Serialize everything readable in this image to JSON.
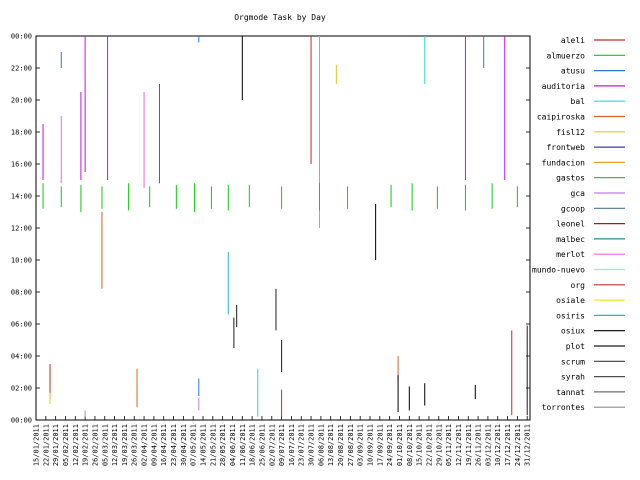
{
  "chart_data": {
    "type": "bar",
    "title": "Orgmode Task by Day",
    "xlabel": "",
    "ylabel": "",
    "ylim": [
      0,
      24
    ],
    "x_range": [
      "2011-01-15",
      "2012-01-02"
    ],
    "y_tick_labels": [
      "00:00",
      "02:00",
      "04:00",
      "06:00",
      "08:00",
      "10:00",
      "12:00",
      "14:00",
      "16:00",
      "18:00",
      "20:00",
      "22:00",
      "00:00"
    ],
    "x_tick_labels": [
      "15/01/2011",
      "22/01/2011",
      "29/01/2011",
      "05/02/2011",
      "12/02/2011",
      "19/02/2011",
      "26/02/2011",
      "05/03/2011",
      "12/03/2011",
      "19/03/2011",
      "26/03/2011",
      "02/04/2011",
      "09/04/2011",
      "16/04/2011",
      "23/04/2011",
      "30/04/2011",
      "07/05/2011",
      "14/05/2011",
      "21/05/2011",
      "28/05/2011",
      "04/06/2011",
      "11/06/2011",
      "18/06/2011",
      "25/06/2011",
      "02/07/2011",
      "09/07/2011",
      "16/07/2011",
      "23/07/2011",
      "30/07/2011",
      "06/08/2011",
      "13/08/2011",
      "20/08/2011",
      "27/08/2011",
      "03/09/2011",
      "10/09/2011",
      "17/09/2011",
      "24/09/2011",
      "01/10/2011",
      "08/10/2011",
      "15/10/2011",
      "22/10/2011",
      "29/10/2011",
      "05/11/2011",
      "12/11/2011",
      "19/11/2011",
      "26/11/2011",
      "03/12/2011",
      "10/12/2011",
      "17/12/2011",
      "24/12/2011",
      "31/12/2011"
    ],
    "grid": false,
    "legend_position": "right",
    "series": [
      {
        "name": "aleli",
        "color": "#c82828"
      },
      {
        "name": "almuerzo",
        "color": "#14c814"
      },
      {
        "name": "atusu",
        "color": "#2878dc"
      },
      {
        "name": "auditoria",
        "color": "#c814dc"
      },
      {
        "name": "bal",
        "color": "#28dcdc"
      },
      {
        "name": "caipiroska",
        "color": "#dc6428"
      },
      {
        "name": "fisl12",
        "color": "#e6c828"
      },
      {
        "name": "frontweb",
        "color": "#3c3cb4"
      },
      {
        "name": "fundacion",
        "color": "#f0a028"
      },
      {
        "name": "gastos",
        "color": "#3ca064"
      },
      {
        "name": "gca",
        "color": "#c878f0"
      },
      {
        "name": "gcoop",
        "color": "#507890"
      },
      {
        "name": "leonel",
        "color": "#a01e1e"
      },
      {
        "name": "malbec",
        "color": "#288c8c"
      },
      {
        "name": "merlot",
        "color": "#f064f0"
      },
      {
        "name": "mundo-nuevo",
        "color": "#8cf0c8"
      },
      {
        "name": "org",
        "color": "#c83232"
      },
      {
        "name": "osiale",
        "color": "#f0e628"
      },
      {
        "name": "osiris",
        "color": "#28b4c8"
      },
      {
        "name": "osiux",
        "color": "#000000"
      },
      {
        "name": "plot",
        "color": "#1e1e1e"
      },
      {
        "name": "scrum",
        "color": "#3c3c3c"
      },
      {
        "name": "syrah",
        "color": "#505050"
      },
      {
        "name": "tannat",
        "color": "#6e6e6e"
      },
      {
        "name": "torrontes",
        "color": "#8c8c8c"
      }
    ],
    "segments": [
      {
        "series": "almuerzo",
        "date": "2011-01-20",
        "start": 13.2,
        "end": 14.8
      },
      {
        "series": "auditoria",
        "date": "2011-01-20",
        "start": 15.0,
        "end": 18.5
      },
      {
        "series": "aleli",
        "date": "2011-01-25",
        "start": 1.5,
        "end": 3.5
      },
      {
        "series": "fisl12",
        "date": "2011-01-25",
        "start": 1.0,
        "end": 1.7
      },
      {
        "series": "almuerzo",
        "date": "2011-02-02",
        "start": 13.3,
        "end": 14.6
      },
      {
        "series": "merlot",
        "date": "2011-02-02",
        "start": 14.8,
        "end": 19.0
      },
      {
        "series": "atusu",
        "date": "2011-02-02",
        "start": 22.0,
        "end": 23.0
      },
      {
        "series": "almuerzo",
        "date": "2011-02-16",
        "start": 13.0,
        "end": 14.7
      },
      {
        "series": "auditoria",
        "date": "2011-02-16",
        "start": 15.0,
        "end": 20.5
      },
      {
        "series": "auditoria",
        "date": "2011-02-19",
        "start": 15.5,
        "end": 24.0
      },
      {
        "series": "gca",
        "date": "2011-02-19",
        "start": 0.2,
        "end": 0.6
      },
      {
        "series": "caipiroska",
        "date": "2011-03-03",
        "start": 8.2,
        "end": 13.0
      },
      {
        "series": "almuerzo",
        "date": "2011-03-03",
        "start": 13.2,
        "end": 14.6
      },
      {
        "series": "auditoria",
        "date": "2011-03-07",
        "start": 15.0,
        "end": 24.0
      },
      {
        "series": "almuerzo",
        "date": "2011-03-22",
        "start": 13.1,
        "end": 14.8
      },
      {
        "series": "caipiroska",
        "date": "2011-03-28",
        "start": 0.8,
        "end": 3.2
      },
      {
        "series": "merlot",
        "date": "2011-04-02",
        "start": 14.5,
        "end": 20.5
      },
      {
        "series": "almuerzo",
        "date": "2011-04-06",
        "start": 13.3,
        "end": 14.6
      },
      {
        "series": "auditoria",
        "date": "2011-04-13",
        "start": 14.8,
        "end": 21.0
      },
      {
        "series": "almuerzo",
        "date": "2011-04-25",
        "start": 13.2,
        "end": 14.7
      },
      {
        "series": "almuerzo",
        "date": "2011-05-08",
        "start": 13.0,
        "end": 14.8
      },
      {
        "series": "atusu",
        "date": "2011-05-11",
        "start": 1.5,
        "end": 2.6
      },
      {
        "series": "gca",
        "date": "2011-05-11",
        "start": 0.6,
        "end": 1.4
      },
      {
        "series": "atusu",
        "date": "2011-05-11",
        "start": 23.6,
        "end": 24.0
      },
      {
        "series": "almuerzo",
        "date": "2011-05-20",
        "start": 13.2,
        "end": 14.6
      },
      {
        "series": "osiris",
        "date": "2011-06-01",
        "start": 6.6,
        "end": 10.5
      },
      {
        "series": "almuerzo",
        "date": "2011-06-01",
        "start": 13.1,
        "end": 14.7
      },
      {
        "series": "plot",
        "date": "2011-06-05",
        "start": 4.5,
        "end": 6.4
      },
      {
        "series": "plot",
        "date": "2011-06-07",
        "start": 5.8,
        "end": 7.2
      },
      {
        "series": "osiux",
        "date": "2011-06-11",
        "start": 20.0,
        "end": 24.0
      },
      {
        "series": "almuerzo",
        "date": "2011-06-16",
        "start": 13.3,
        "end": 14.7
      },
      {
        "series": "bal",
        "date": "2011-06-22",
        "start": 0.2,
        "end": 3.2
      },
      {
        "series": "plot",
        "date": "2011-07-05",
        "start": 5.6,
        "end": 8.2
      },
      {
        "series": "aleli",
        "date": "2011-07-09",
        "start": 0.2,
        "end": 1.9
      },
      {
        "series": "plot",
        "date": "2011-07-09",
        "start": 3.0,
        "end": 5.0
      },
      {
        "series": "almuerzo",
        "date": "2011-07-09",
        "start": 13.2,
        "end": 14.6
      },
      {
        "series": "aleli",
        "date": "2011-07-30",
        "start": 16.0,
        "end": 24.0
      },
      {
        "series": "bal",
        "date": "2011-08-05",
        "start": 12.0,
        "end": 24.0
      },
      {
        "series": "almuerzo",
        "date": "2011-08-05",
        "start": 13.1,
        "end": 14.8
      },
      {
        "series": "fisl12",
        "date": "2011-08-17",
        "start": 21.0,
        "end": 22.2
      },
      {
        "series": "almuerzo",
        "date": "2011-08-25",
        "start": 13.2,
        "end": 14.6
      },
      {
        "series": "osiux",
        "date": "2011-09-14",
        "start": 10.0,
        "end": 13.5
      },
      {
        "series": "almuerzo",
        "date": "2011-09-25",
        "start": 13.3,
        "end": 14.7
      },
      {
        "series": "caipiroska",
        "date": "2011-09-30",
        "start": 2.5,
        "end": 4.0
      },
      {
        "series": "osiux",
        "date": "2011-09-30",
        "start": 0.5,
        "end": 2.8
      },
      {
        "series": "osiux",
        "date": "2011-10-08",
        "start": 0.6,
        "end": 2.1
      },
      {
        "series": "almuerzo",
        "date": "2011-10-10",
        "start": 13.1,
        "end": 14.8
      },
      {
        "series": "osiux",
        "date": "2011-10-19",
        "start": 0.9,
        "end": 2.3
      },
      {
        "series": "bal",
        "date": "2011-10-19",
        "start": 21.0,
        "end": 24.0
      },
      {
        "series": "almuerzo",
        "date": "2011-10-28",
        "start": 13.2,
        "end": 14.6
      },
      {
        "series": "auditoria",
        "date": "2011-11-17",
        "start": 15.0,
        "end": 24.0
      },
      {
        "series": "almuerzo",
        "date": "2011-11-17",
        "start": 13.1,
        "end": 14.7
      },
      {
        "series": "osiux",
        "date": "2011-11-24",
        "start": 1.3,
        "end": 2.2
      },
      {
        "series": "atusu",
        "date": "2011-11-30",
        "start": 22.0,
        "end": 24.0
      },
      {
        "series": "almuerzo",
        "date": "2011-12-06",
        "start": 13.2,
        "end": 14.8
      },
      {
        "series": "auditoria",
        "date": "2011-12-15",
        "start": 15.0,
        "end": 24.0
      },
      {
        "series": "aleli",
        "date": "2011-12-20",
        "start": 0.3,
        "end": 5.6
      },
      {
        "series": "plot",
        "date": "2011-12-31",
        "start": 0.3,
        "end": 5.9
      },
      {
        "series": "almuerzo",
        "date": "2011-12-24",
        "start": 13.3,
        "end": 14.6
      }
    ]
  }
}
